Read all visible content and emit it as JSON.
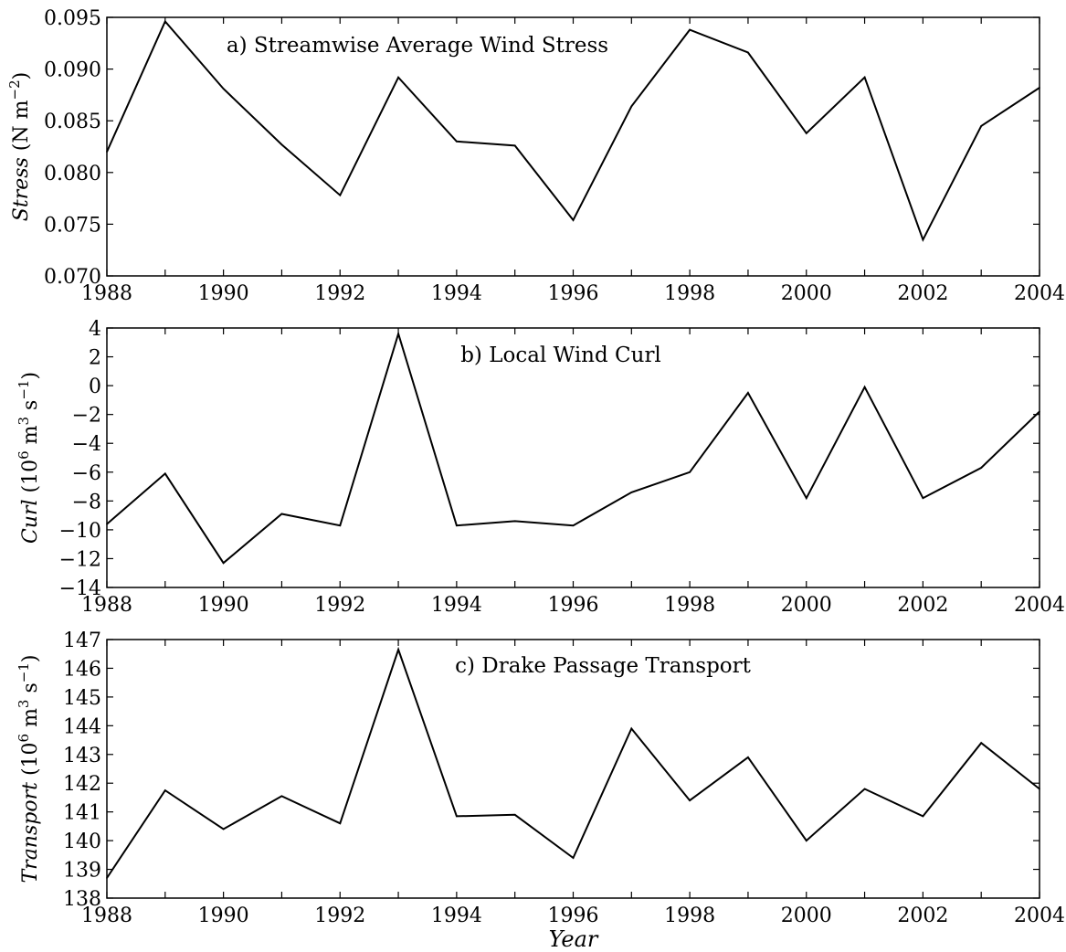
{
  "chart_data": [
    {
      "type": "line",
      "title": "a) Streamwise Average Wind Stress",
      "ylabel_italic": "Stress",
      "ylabel_unit": "(N m",
      "ylabel_unit_sup": "−2",
      "ylabel_unit_end": ")",
      "xlabel": "",
      "x": [
        1988,
        1989,
        1990,
        1991,
        1992,
        1993,
        1994,
        1995,
        1996,
        1997,
        1998,
        1999,
        2000,
        2001,
        2002,
        2003,
        2004
      ],
      "values": [
        0.082,
        0.0946,
        0.0881,
        0.0827,
        0.0778,
        0.0892,
        0.083,
        0.0826,
        0.0754,
        0.0864,
        0.0938,
        0.0916,
        0.0838,
        0.0892,
        0.0735,
        0.0845,
        0.0882
      ],
      "xlim": [
        1988,
        2004
      ],
      "ylim": [
        0.07,
        0.095
      ],
      "xticks": [
        1988,
        1990,
        1992,
        1994,
        1996,
        1998,
        2000,
        2002,
        2004
      ],
      "yticks": [
        0.07,
        0.075,
        0.08,
        0.085,
        0.09,
        0.095
      ],
      "ytick_labels": [
        "0.070",
        "0.075",
        "0.080",
        "0.085",
        "0.090",
        "0.095"
      ],
      "grid": false
    },
    {
      "type": "line",
      "title": "b) Local Wind Curl",
      "ylabel_italic": "Curl",
      "ylabel_unit": "(10",
      "ylabel_unit_sup": "6",
      "ylabel_unit_mid": " m",
      "ylabel_unit_sup2": "3",
      "ylabel_unit_mid2": " s",
      "ylabel_unit_sup3": "−1",
      "ylabel_unit_end": ")",
      "xlabel": "",
      "x": [
        1988,
        1989,
        1990,
        1991,
        1992,
        1993,
        1994,
        1995,
        1996,
        1997,
        1998,
        1999,
        2000,
        2001,
        2002,
        2003,
        2004
      ],
      "values": [
        -9.6,
        -6.1,
        -12.3,
        -8.9,
        -9.7,
        3.6,
        -9.7,
        -9.4,
        -9.7,
        -7.4,
        -6.0,
        -0.5,
        -7.8,
        -0.1,
        -7.8,
        -5.7,
        -1.8
      ],
      "xlim": [
        1988,
        2004
      ],
      "ylim": [
        -14,
        4
      ],
      "xticks": [
        1988,
        1990,
        1992,
        1994,
        1996,
        1998,
        2000,
        2002,
        2004
      ],
      "yticks": [
        -14,
        -12,
        -10,
        -8,
        -6,
        -4,
        -2,
        0,
        2,
        4
      ],
      "ytick_labels": [
        "−14",
        "−12",
        "−10",
        "−8",
        "−6",
        "−4",
        "−2",
        "0",
        "2",
        "4"
      ],
      "grid": false
    },
    {
      "type": "line",
      "title": "c) Drake Passage Transport",
      "ylabel_italic": "Transport",
      "ylabel_unit": "(10",
      "ylabel_unit_sup": "6",
      "ylabel_unit_mid": " m",
      "ylabel_unit_sup2": "3",
      "ylabel_unit_mid2": " s",
      "ylabel_unit_sup3": "−1",
      "ylabel_unit_end": ")",
      "xlabel": "Year",
      "x": [
        1988,
        1989,
        1990,
        1991,
        1992,
        1993,
        1994,
        1995,
        1996,
        1997,
        1998,
        1999,
        2000,
        2001,
        2002,
        2003,
        2004
      ],
      "values": [
        138.7,
        141.75,
        140.4,
        141.55,
        140.6,
        146.65,
        140.85,
        140.9,
        139.4,
        143.9,
        141.4,
        142.9,
        140.0,
        141.8,
        140.85,
        143.4,
        141.8
      ],
      "xlim": [
        1988,
        2004
      ],
      "ylim": [
        138,
        147
      ],
      "xticks": [
        1988,
        1990,
        1992,
        1994,
        1996,
        1998,
        2000,
        2002,
        2004
      ],
      "yticks": [
        138,
        139,
        140,
        141,
        142,
        143,
        144,
        145,
        146,
        147
      ],
      "ytick_labels": [
        "138",
        "139",
        "140",
        "141",
        "142",
        "143",
        "144",
        "145",
        "146",
        "147"
      ],
      "grid": false
    }
  ]
}
